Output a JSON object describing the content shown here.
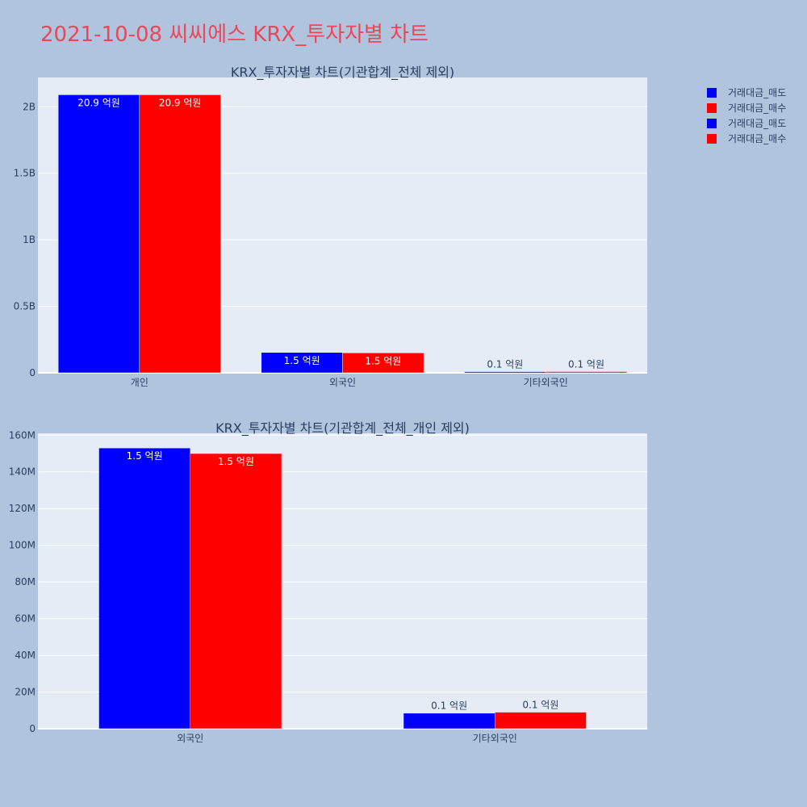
{
  "title": "2021-10-08 씨씨에스 KRX_투자자별 차트",
  "colors": {
    "sell": "#0000ff",
    "buy": "#ff0000",
    "plot_bg": "#e5ecf6",
    "page_bg": "#b0c4de",
    "title": "#e8485a"
  },
  "legend": {
    "placement": "top-right",
    "items": [
      {
        "label": "거래대금_매도",
        "color": "#0000ff"
      },
      {
        "label": "거래대금_매수",
        "color": "#ff0000"
      },
      {
        "label": "거래대금_매도",
        "color": "#0000ff"
      },
      {
        "label": "거래대금_매수",
        "color": "#ff0000"
      }
    ]
  },
  "chart_data": [
    {
      "type": "bar",
      "title": "KRX_투자자별 차트(기관합계_전체 제외)",
      "categories": [
        "개인",
        "외국인",
        "기타외국인"
      ],
      "series": [
        {
          "name": "거래대금_매도",
          "color": "#0000ff",
          "values": [
            2090000000,
            153000000,
            8500000
          ],
          "labels": [
            "20.9 억원",
            "1.5 억원",
            "0.1 억원"
          ]
        },
        {
          "name": "거래대금_매수",
          "color": "#ff0000",
          "values": [
            2090000000,
            150000000,
            9000000
          ],
          "labels": [
            "20.9 억원",
            "1.5 억원",
            "0.1 억원"
          ]
        }
      ],
      "ylim": [
        0,
        2220000000
      ],
      "ytick_values": [
        0,
        500000000,
        1000000000,
        1500000000,
        2000000000
      ],
      "ytick_labels": [
        "0",
        "0.5B",
        "1B",
        "1.5B",
        "2B"
      ],
      "grid": true
    },
    {
      "type": "bar",
      "title": "KRX_투자자별 차트(기관합계_전체_개인 제외)",
      "categories": [
        "외국인",
        "기타외국인"
      ],
      "series": [
        {
          "name": "거래대금_매도",
          "color": "#0000ff",
          "values": [
            153000000,
            8500000
          ],
          "labels": [
            "1.5 억원",
            "0.1 억원"
          ]
        },
        {
          "name": "거래대금_매수",
          "color": "#ff0000",
          "values": [
            150000000,
            9000000
          ],
          "labels": [
            "1.5 억원",
            "0.1 억원"
          ]
        }
      ],
      "ylim": [
        0,
        161000000
      ],
      "ytick_values": [
        0,
        20000000,
        40000000,
        60000000,
        80000000,
        100000000,
        120000000,
        140000000,
        160000000
      ],
      "ytick_labels": [
        "0",
        "20M",
        "40M",
        "60M",
        "80M",
        "100M",
        "120M",
        "140M",
        "160M"
      ],
      "grid": true
    }
  ]
}
